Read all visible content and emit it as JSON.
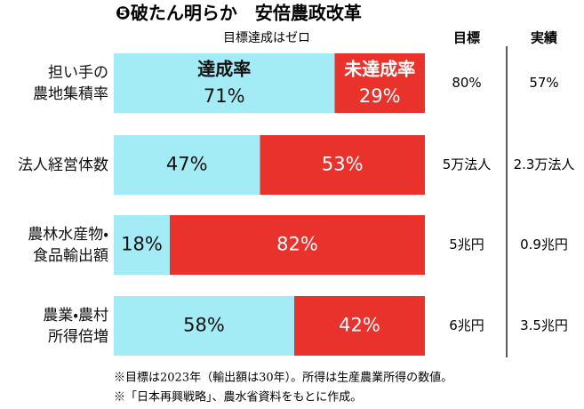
{
  "chart_data": {
    "type": "stacked_bar_horizontal",
    "title": "❺破たん明らか　安倍農政改革",
    "subtitle": "目標達成はゼロ",
    "categories": [
      "担い手の\n農地集積率",
      "法人経営体数",
      "農林水産物・\n食品輸出額",
      "農業・農村\n所得倍増"
    ],
    "series": [
      {
        "name": "達成率",
        "color": "#a3ecf6",
        "label_color": "#111111",
        "values": [
          71,
          47,
          18,
          58
        ],
        "value_labels": [
          "71%",
          "47%",
          "18%",
          "58%"
        ]
      },
      {
        "name": "未達成率",
        "color": "#e8322b",
        "label_color": "#ffffff",
        "values": [
          29,
          53,
          82,
          42
        ],
        "value_labels": [
          "29%",
          "53%",
          "82%",
          "42%"
        ]
      }
    ],
    "xlim": [
      0,
      100
    ],
    "columns": [
      {
        "header": "目標",
        "cells": [
          "80%",
          "5万法人",
          "5兆円",
          "6兆円"
        ]
      },
      {
        "header": "実績",
        "cells": [
          "57%",
          "2.3万法人",
          "0.9兆円",
          "3.5兆円"
        ]
      }
    ],
    "notes": [
      "※目標は2023年（輸出額は30年）。所得は生産農業所得の数値。",
      "※「日本再興戦略」、農水省資料をもとに作成。"
    ]
  }
}
